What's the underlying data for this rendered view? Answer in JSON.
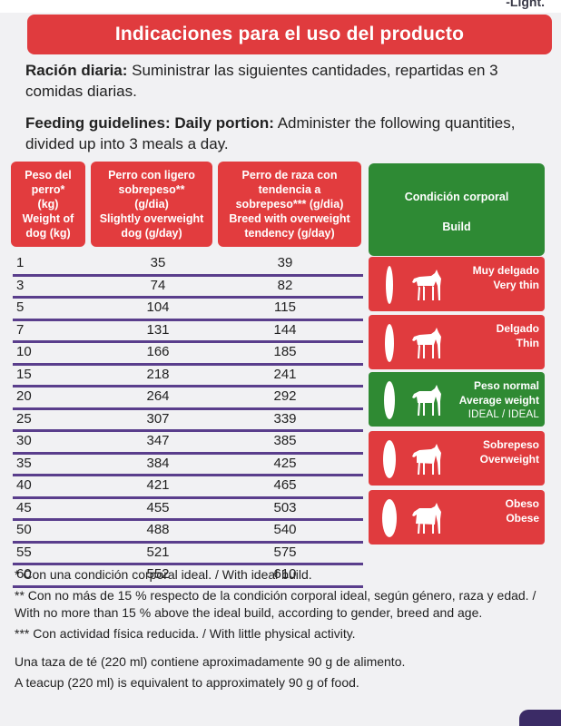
{
  "top_fragment": "-Light.",
  "banner": "Indicaciones para el uso del producto",
  "ration_es": {
    "label": "Ración diaria:",
    "text": " Suministrar las siguientes cantidades, repartidas en 3 comidas diarias."
  },
  "ration_en": {
    "label": "Feeding guidelines: Daily portion:",
    "text": " Administer the following quantities, divided up into 3 meals a day."
  },
  "table": {
    "headers": {
      "weight": [
        "Peso del",
        "perro*",
        "(kg)",
        "Weight of",
        "dog (kg)"
      ],
      "light": [
        "Perro con ligero",
        "sobrepeso**",
        "(g/dia)",
        "Slightly overweight",
        "dog (g/day)"
      ],
      "breed": [
        "Perro de raza con",
        "tendencia a",
        "sobrepeso*** (g/dia)",
        "Breed with overweight",
        "tendency (g/day)"
      ]
    },
    "rows": [
      [
        "1",
        "35",
        "39"
      ],
      [
        "3",
        "74",
        "82"
      ],
      [
        "5",
        "104",
        "115"
      ],
      [
        "7",
        "131",
        "144"
      ],
      [
        "10",
        "166",
        "185"
      ],
      [
        "15",
        "218",
        "241"
      ],
      [
        "20",
        "264",
        "292"
      ],
      [
        "25",
        "307",
        "339"
      ],
      [
        "30",
        "347",
        "385"
      ],
      [
        "35",
        "384",
        "425"
      ],
      [
        "40",
        "421",
        "465"
      ],
      [
        "45",
        "455",
        "503"
      ],
      [
        "50",
        "488",
        "540"
      ],
      [
        "55",
        "521",
        "575"
      ],
      [
        "60",
        "552",
        "610"
      ]
    ]
  },
  "condition": {
    "title": "Condición corporal",
    "subtitle": "Build",
    "items": [
      {
        "es": "Muy delgado",
        "en": "Very thin",
        "extra": "",
        "color": "#e03b3e"
      },
      {
        "es": "Delgado",
        "en": "Thin",
        "extra": "",
        "color": "#e03b3e"
      },
      {
        "es": "Peso normal",
        "en": "Average weight",
        "extra": "IDEAL / IDEAL",
        "color": "#2f8a33"
      },
      {
        "es": "Sobrepeso",
        "en": "Overweight",
        "extra": "",
        "color": "#e03b3e"
      },
      {
        "es": "Obeso",
        "en": "Obese",
        "extra": "",
        "color": "#e03b3e"
      }
    ]
  },
  "notes": {
    "n1": "* Con una condición corporal ideal. / With ideal build.",
    "n2": "** Con no más de 15 % respecto de la condición corporal ideal, según género, raza y edad. / With no more than 15 % above the ideal build, according to gender, breed and age.",
    "n3": "*** Con actividad física reducida. / With little physical activity.",
    "n4": "Una taza de té (220 ml) contiene aproximadamente 90 g de alimento.",
    "n5": "A teacup (220 ml) is equivalent to approximately 90 g of food."
  }
}
